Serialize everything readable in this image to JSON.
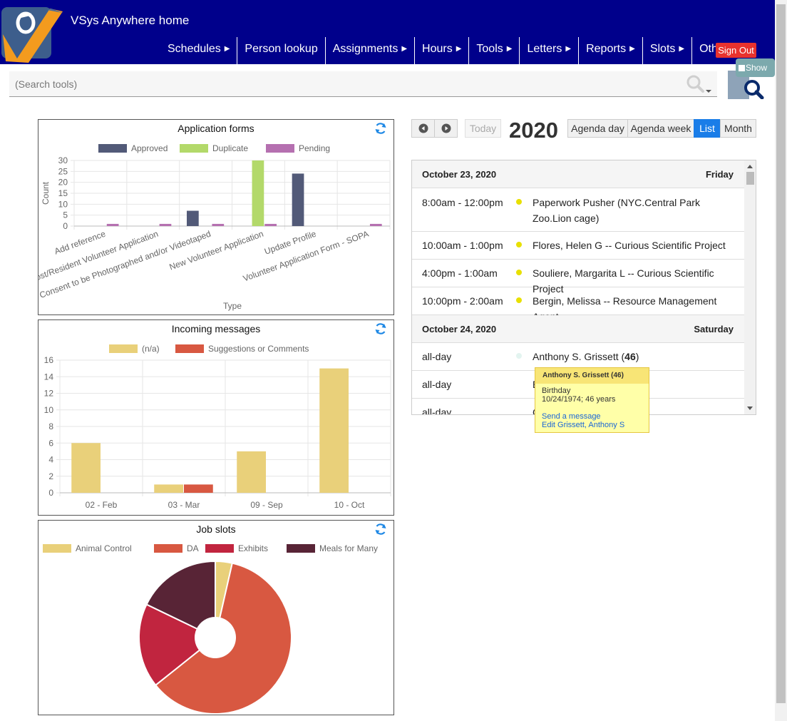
{
  "header": {
    "app_title": "VSys Anywhere home",
    "nav": [
      {
        "label": "Schedules",
        "has_submenu": true
      },
      {
        "label": "Person lookup",
        "has_submenu": false
      },
      {
        "label": "Assignments",
        "has_submenu": true
      },
      {
        "label": "Hours",
        "has_submenu": true
      },
      {
        "label": "Tools",
        "has_submenu": true
      },
      {
        "label": "Letters",
        "has_submenu": true
      },
      {
        "label": "Reports",
        "has_submenu": true
      },
      {
        "label": "Slots",
        "has_submenu": true
      },
      {
        "label": "Other",
        "has_submenu": true
      }
    ],
    "sign_out": "Sign Out",
    "colors": {
      "bar": "#00008b",
      "sign_out": "#e8322e"
    }
  },
  "search": {
    "placeholder": "(Search tools)",
    "show_label": "Show"
  },
  "application_forms": {
    "title": "Application forms",
    "chart_data": {
      "type": "bar",
      "title": "Application forms",
      "xlabel": "Type",
      "ylabel": "Count",
      "ylim": [
        0,
        30
      ],
      "yticks": [
        0,
        5,
        10,
        15,
        20,
        25,
        30
      ],
      "categories": [
        "Add reference",
        "Background Host/Resident Volunteer Application",
        "CMH Consent to be Photographed and/or Videotaped",
        "New Volunteer Application",
        "Update Profile",
        "Volunteer Application Form - SOPA"
      ],
      "category_labels": [
        "Add reference",
        "ground Host/Resident Volunteer Application",
        "MH Consent to be Photographed and/or Videotaped",
        "New Volunteer Application",
        "Update Profile",
        "Volunteer Application Form - SOPA"
      ],
      "series": [
        {
          "name": "Approved",
          "color": "#525a78",
          "values": [
            0,
            0,
            7,
            0,
            24,
            0
          ]
        },
        {
          "name": "Duplicate",
          "color": "#b3d96a",
          "values": [
            0,
            0,
            0,
            30,
            0,
            0
          ]
        },
        {
          "name": "Pending",
          "color": "#b570b0",
          "values": [
            1,
            1,
            1,
            1,
            0,
            1
          ]
        }
      ],
      "legend": "top",
      "grid": true
    }
  },
  "incoming_messages": {
    "title": "Incoming messages",
    "chart_data": {
      "type": "bar",
      "title": "Incoming messages",
      "ylim": [
        0,
        16
      ],
      "yticks": [
        0,
        2,
        4,
        6,
        8,
        10,
        12,
        14,
        16
      ],
      "categories": [
        "02 - Feb",
        "03 - Mar",
        "09 - Sep",
        "10 - Oct"
      ],
      "series": [
        {
          "name": "(n/a)",
          "color": "#e9d07a",
          "values": [
            6,
            1,
            5,
            15
          ]
        },
        {
          "name": "Suggestions or Comments",
          "color": "#d85841",
          "values": [
            0,
            1,
            0,
            0
          ]
        }
      ],
      "legend": "top",
      "grid": true
    }
  },
  "job_slots": {
    "title": "Job slots",
    "chart_data": {
      "type": "pie",
      "title": "Job slots",
      "labels": [
        "Animal Control",
        "DA",
        "Exhibits",
        "Meals for Many"
      ],
      "values": [
        1,
        17,
        5,
        5
      ],
      "colors": [
        "#e9d07a",
        "#d85841",
        "#c1253f",
        "#582436"
      ],
      "legend": "top"
    }
  },
  "calendar": {
    "year": "2020",
    "today_label": "Today",
    "views": [
      "Agenda day",
      "Agenda week",
      "List",
      "Month"
    ],
    "active_view": "List",
    "days": [
      {
        "date": "October 23, 2020",
        "weekday": "Friday",
        "events": [
          {
            "time": "8:00am - 12:00pm",
            "title": "Paperwork Pusher (NYC.Central Park Zoo.Lion cage)"
          },
          {
            "time": "10:00am - 1:00pm",
            "title": "Flores, Helen G -- Curious Scientific Project"
          },
          {
            "time": "4:00pm - 1:00am",
            "title": "Souliere, Margarita L -- Curious Scientific Project"
          },
          {
            "time": "10:00pm - 2:00am",
            "title": "Bergin, Melissa -- Resource Management Agent"
          }
        ]
      },
      {
        "date": "October 24, 2020",
        "weekday": "Saturday",
        "events": [
          {
            "time": "all-day",
            "title": "Anthony S. Grissett",
            "age": "46"
          },
          {
            "time": "all-day",
            "title": "E"
          },
          {
            "time": "all-day",
            "title": "C"
          }
        ]
      }
    ],
    "tooltip": {
      "title": "Anthony S. Grissett (46)",
      "line1": "Birthday",
      "line2": "10/24/1974; 46 years",
      "link1": "Send a message",
      "link2": "Edit Grissett, Anthony S"
    }
  }
}
